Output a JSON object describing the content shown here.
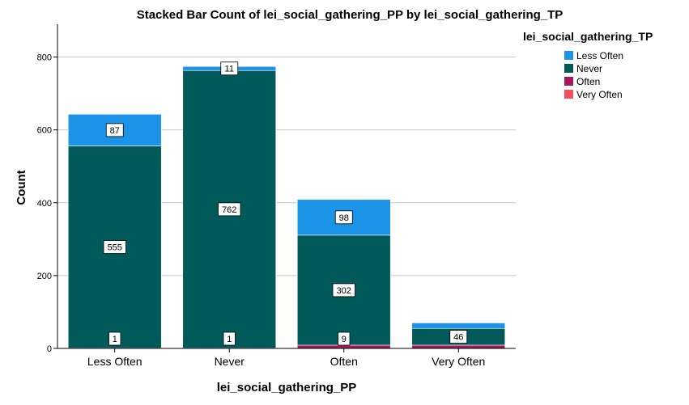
{
  "chart_data": {
    "type": "bar",
    "stacked": true,
    "title": "Stacked Bar Count of lei_social_gathering_PP by lei_social_gathering_TP",
    "xlabel": "lei_social_gathering_PP",
    "ylabel": "Count",
    "ylim": [
      0,
      890
    ],
    "yticks": [
      0,
      200,
      400,
      600,
      800
    ],
    "categories": [
      "Less Often",
      "Never",
      "Often",
      "Very Often"
    ],
    "legend_title": "lei_social_gathering_TP",
    "legend_position": "top-right",
    "grid": "horizontal",
    "series": [
      {
        "name": "Very Often",
        "color": "#f6505e",
        "values": [
          0,
          0,
          0,
          0
        ],
        "labels": [
          null,
          null,
          null,
          null
        ]
      },
      {
        "name": "Often",
        "color": "#a21a5c",
        "values": [
          1,
          1,
          9,
          9
        ],
        "labels": [
          "1",
          "1",
          "9",
          null
        ]
      },
      {
        "name": "Never",
        "color": "#015a5a",
        "values": [
          555,
          762,
          302,
          46
        ],
        "labels": [
          "555",
          "762",
          "302",
          "46"
        ]
      },
      {
        "name": "Less Often",
        "color": "#1b93e6",
        "values": [
          87,
          11,
          98,
          15
        ],
        "labels": [
          "87",
          "11",
          "98",
          null
        ]
      }
    ]
  }
}
